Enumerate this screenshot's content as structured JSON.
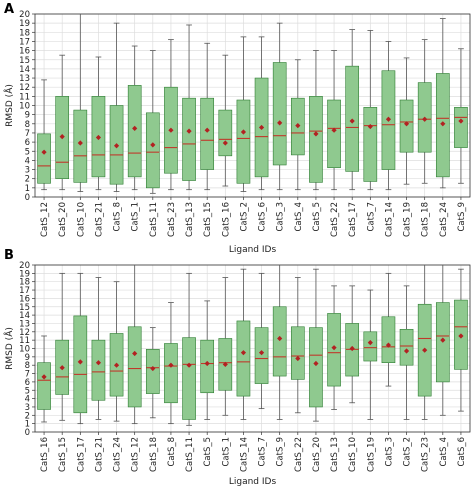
{
  "colors": {
    "box_fill": "#8fc98f",
    "box_stroke": "#2e7d32",
    "median": "#c0392b",
    "mean_marker": "#b22222",
    "whisker": "#555555",
    "grid": "#dddddd"
  },
  "chart_data": [
    {
      "type": "box",
      "panel_label": "A",
      "xlabel": "Ligand IDs",
      "ylabel": "RMSD (Å)",
      "ylim": [
        0,
        20
      ],
      "yticks": [
        0,
        1,
        2,
        3,
        4,
        5,
        6,
        7,
        8,
        9,
        10,
        11,
        12,
        13,
        14,
        15,
        16,
        17,
        18,
        19,
        20
      ],
      "grid": true,
      "categories": [
        "CatS_12",
        "CatS_20",
        "CatS_10",
        "CatS_21",
        "CatS_8",
        "CatS_1",
        "CatS_11",
        "CatS_23",
        "CatS_13",
        "CatS_15",
        "CatS_16",
        "CatS_2",
        "CatS_6",
        "CatS_3",
        "CatS_4",
        "CatS_5",
        "CatS_22",
        "CatS_17",
        "CatS_7",
        "CatS_14",
        "CatS_19",
        "CatS_18",
        "CatS_24",
        "CatS_9"
      ],
      "boxes": [
        {
          "whisker_low": 0.8,
          "q1": 1.5,
          "median": 3.4,
          "q3": 6.9,
          "whisker_high": 12.8,
          "mean": 4.9
        },
        {
          "whisker_low": 0.8,
          "q1": 2.0,
          "median": 3.8,
          "q3": 11.0,
          "whisker_high": 15.5,
          "mean": 6.6
        },
        {
          "whisker_low": 0.6,
          "q1": 1.6,
          "median": 4.5,
          "q3": 9.5,
          "whisker_high": 20.0,
          "mean": 5.9
        },
        {
          "whisker_low": 0.8,
          "q1": 2.2,
          "median": 4.6,
          "q3": 11.0,
          "whisker_high": 15.3,
          "mean": 6.5
        },
        {
          "whisker_low": 0.6,
          "q1": 1.4,
          "median": 4.6,
          "q3": 10.0,
          "whisker_high": 19.0,
          "mean": 5.6
        },
        {
          "whisker_low": 0.8,
          "q1": 2.2,
          "median": 4.8,
          "q3": 12.2,
          "whisker_high": 16.5,
          "mean": 7.5
        },
        {
          "whisker_low": 0.4,
          "q1": 1.0,
          "median": 4.9,
          "q3": 9.2,
          "whisker_high": 16.0,
          "mean": 5.7
        },
        {
          "whisker_low": 0.8,
          "q1": 2.6,
          "median": 5.4,
          "q3": 12.0,
          "whisker_high": 17.2,
          "mean": 7.3
        },
        {
          "whisker_low": 0.8,
          "q1": 1.8,
          "median": 5.8,
          "q3": 10.8,
          "whisker_high": 18.8,
          "mean": 7.2
        },
        {
          "whisker_low": 0.8,
          "q1": 3.0,
          "median": 6.2,
          "q3": 10.8,
          "whisker_high": 16.8,
          "mean": 7.3
        },
        {
          "whisker_low": 1.2,
          "q1": 4.5,
          "median": 6.3,
          "q3": 9.5,
          "whisker_high": 15.5,
          "mean": 5.9
        },
        {
          "whisker_low": 0.6,
          "q1": 1.5,
          "median": 6.4,
          "q3": 10.6,
          "whisker_high": 17.5,
          "mean": 7.1
        },
        {
          "whisker_low": 0.8,
          "q1": 2.2,
          "median": 6.6,
          "q3": 13.0,
          "whisker_high": 17.5,
          "mean": 7.6
        },
        {
          "whisker_low": 0.8,
          "q1": 3.5,
          "median": 6.7,
          "q3": 14.7,
          "whisker_high": 19.0,
          "mean": 8.1
        },
        {
          "whisker_low": 0.8,
          "q1": 4.6,
          "median": 7.0,
          "q3": 10.8,
          "whisker_high": 15.0,
          "mean": 7.8
        },
        {
          "whisker_low": 0.8,
          "q1": 1.6,
          "median": 7.2,
          "q3": 11.0,
          "whisker_high": 16.0,
          "mean": 6.9
        },
        {
          "whisker_low": 0.8,
          "q1": 3.2,
          "median": 7.5,
          "q3": 10.6,
          "whisker_high": 16.0,
          "mean": 7.3
        },
        {
          "whisker_low": 0.8,
          "q1": 2.8,
          "median": 7.6,
          "q3": 14.3,
          "whisker_high": 18.3,
          "mean": 8.3
        },
        {
          "whisker_low": 0.8,
          "q1": 1.7,
          "median": 7.8,
          "q3": 9.8,
          "whisker_high": 18.2,
          "mean": 7.7
        },
        {
          "whisker_low": 0.8,
          "q1": 3.0,
          "median": 7.9,
          "q3": 13.8,
          "whisker_high": 17.0,
          "mean": 8.5
        },
        {
          "whisker_low": 1.4,
          "q1": 4.9,
          "median": 8.2,
          "q3": 10.6,
          "whisker_high": 15.2,
          "mean": 8.0
        },
        {
          "whisker_low": 1.5,
          "q1": 4.9,
          "median": 8.5,
          "q3": 12.5,
          "whisker_high": 17.2,
          "mean": 8.5
        },
        {
          "whisker_low": 1.0,
          "q1": 2.2,
          "median": 8.6,
          "q3": 13.5,
          "whisker_high": 19.5,
          "mean": 8.0
        },
        {
          "whisker_low": 1.5,
          "q1": 5.4,
          "median": 8.7,
          "q3": 9.8,
          "whisker_high": 16.2,
          "mean": 8.3
        }
      ]
    },
    {
      "type": "box",
      "panel_label": "B",
      "xlabel": "Ligand IDs",
      "ylabel": "RMSD (Å)",
      "ylim": [
        0,
        20
      ],
      "yticks": [
        0,
        1,
        2,
        3,
        4,
        5,
        6,
        7,
        8,
        9,
        10,
        11,
        12,
        13,
        14,
        15,
        16,
        17,
        18,
        19,
        20
      ],
      "grid": true,
      "categories": [
        "CatS_16",
        "CatS_15",
        "CatS_17",
        "CatS_21",
        "CatS_24",
        "CatS_12",
        "CatS_18",
        "CatS_8",
        "CatS_11",
        "CatS_5",
        "CatS_1",
        "CatS_14",
        "CatS_7",
        "CatS_9",
        "CatS_22",
        "CatS_20",
        "CatS_13",
        "CatS_10",
        "CatS_19",
        "CatS_3",
        "CatS_2",
        "CatS_23",
        "CatS_4",
        "CatS_6"
      ],
      "boxes": [
        {
          "whisker_low": 1.2,
          "q1": 2.7,
          "median": 6.2,
          "q3": 8.3,
          "whisker_high": 11.5,
          "mean": 6.6
        },
        {
          "whisker_low": 1.4,
          "q1": 4.5,
          "median": 6.6,
          "q3": 11.0,
          "whisker_high": 19.0,
          "mean": 7.7
        },
        {
          "whisker_low": 1.0,
          "q1": 2.3,
          "median": 6.9,
          "q3": 13.9,
          "whisker_high": 19.0,
          "mean": 8.4
        },
        {
          "whisker_low": 1.5,
          "q1": 3.8,
          "median": 7.2,
          "q3": 11.0,
          "whisker_high": 18.5,
          "mean": 8.3
        },
        {
          "whisker_low": 1.3,
          "q1": 4.3,
          "median": 7.3,
          "q3": 11.8,
          "whisker_high": 18.0,
          "mean": 8.0
        },
        {
          "whisker_low": 1.0,
          "q1": 3.0,
          "median": 7.6,
          "q3": 12.6,
          "whisker_high": 20.0,
          "mean": 9.4
        },
        {
          "whisker_low": 1.7,
          "q1": 4.6,
          "median": 7.7,
          "q3": 9.9,
          "whisker_high": 12.5,
          "mean": 7.6
        },
        {
          "whisker_low": 1.0,
          "q1": 3.5,
          "median": 7.9,
          "q3": 10.6,
          "whisker_high": 15.5,
          "mean": 8.0
        },
        {
          "whisker_low": 0.8,
          "q1": 1.5,
          "median": 8.1,
          "q3": 11.3,
          "whisker_high": 19.0,
          "mean": 8.0
        },
        {
          "whisker_low": 1.5,
          "q1": 4.7,
          "median": 8.2,
          "q3": 11.0,
          "whisker_high": 15.7,
          "mean": 8.2
        },
        {
          "whisker_low": 2.0,
          "q1": 5.0,
          "median": 8.3,
          "q3": 11.2,
          "whisker_high": 18.5,
          "mean": 8.1
        },
        {
          "whisker_low": 1.5,
          "q1": 4.3,
          "median": 8.4,
          "q3": 13.3,
          "whisker_high": 19.5,
          "mean": 9.5
        },
        {
          "whisker_low": 2.8,
          "q1": 5.8,
          "median": 8.8,
          "q3": 12.5,
          "whisker_high": 19.0,
          "mean": 9.5
        },
        {
          "whisker_low": 1.5,
          "q1": 6.7,
          "median": 9.0,
          "q3": 15.0,
          "whisker_high": 20.0,
          "mean": 11.2
        },
        {
          "whisker_low": 2.3,
          "q1": 6.3,
          "median": 9.1,
          "q3": 12.6,
          "whisker_high": 18.5,
          "mean": 8.8
        },
        {
          "whisker_low": 1.3,
          "q1": 3.0,
          "median": 9.2,
          "q3": 12.5,
          "whisker_high": 19.5,
          "mean": 8.2
        },
        {
          "whisker_low": 2.7,
          "q1": 5.5,
          "median": 9.5,
          "q3": 14.2,
          "whisker_high": 17.5,
          "mean": 10.1
        },
        {
          "whisker_low": 3.5,
          "q1": 6.7,
          "median": 9.9,
          "q3": 13.0,
          "whisker_high": 17.5,
          "mean": 10.0
        },
        {
          "whisker_low": 1.5,
          "q1": 8.5,
          "median": 10.1,
          "q3": 12.0,
          "whisker_high": 17.0,
          "mean": 10.7
        },
        {
          "whisker_low": 5.5,
          "q1": 8.3,
          "median": 10.2,
          "q3": 13.8,
          "whisker_high": 19.0,
          "mean": 10.4
        },
        {
          "whisker_low": 1.5,
          "q1": 8.0,
          "median": 10.3,
          "q3": 12.3,
          "whisker_high": 17.5,
          "mean": 9.7
        },
        {
          "whisker_low": 1.5,
          "q1": 4.3,
          "median": 11.2,
          "q3": 15.3,
          "whisker_high": 20.0,
          "mean": 9.8
        },
        {
          "whisker_low": 2.0,
          "q1": 6.0,
          "median": 11.5,
          "q3": 15.5,
          "whisker_high": 20.0,
          "mean": 11.0
        },
        {
          "whisker_low": 2.5,
          "q1": 7.5,
          "median": 12.6,
          "q3": 15.8,
          "whisker_high": 19.5,
          "mean": 11.5
        }
      ]
    }
  ]
}
